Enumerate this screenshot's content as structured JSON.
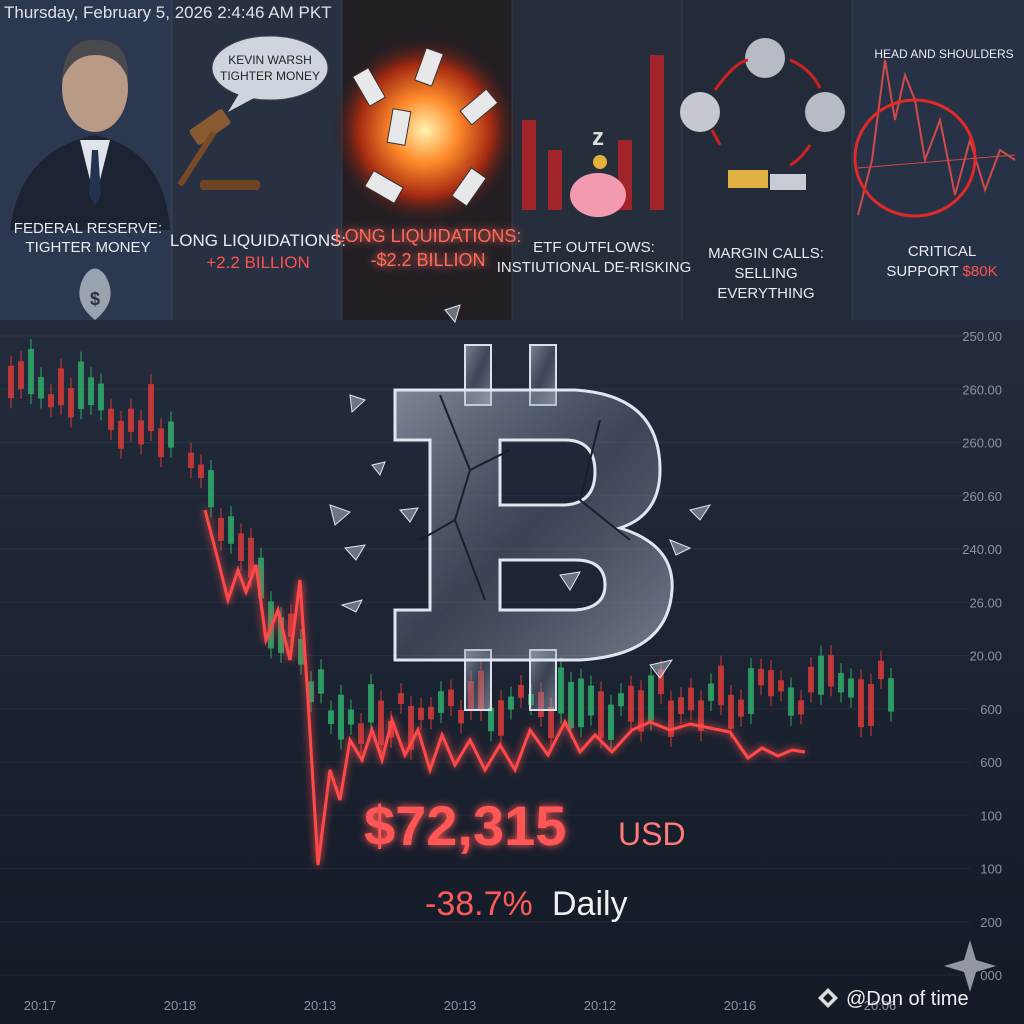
{
  "header": {
    "timestamp": "Thursday, February 5, 2026 2:4:46 AM PKT"
  },
  "panels": [
    {
      "caption": [
        "FEDERAL RESERVE:",
        "TIGHTER MONEY"
      ]
    },
    {
      "bubble": [
        "KEVIN WARSH",
        "TIGHTER MONEY"
      ],
      "caption": [
        "LONG LIQUIDATIONS:"
      ],
      "highlight": "+2.2 BILLION"
    },
    {
      "caption": [
        "LONG LIQUIDATIONS:",
        "-$2.2 BILLION"
      ]
    },
    {
      "caption": [
        "ETF OUTFLOWS:",
        "INSTIUTIONAL DE-RISKING"
      ]
    },
    {
      "caption": [
        "MARGIN CALLS:",
        "SELLING",
        "EVERYTHING"
      ]
    },
    {
      "title": "HEAD AND SHOULDERS",
      "caption": [
        "CRITICAL"
      ],
      "prefix": "SUPPORT",
      "highlight": "$80K"
    }
  ],
  "price": {
    "amount": "$72,315",
    "unit": "USD",
    "change": "-38.7%",
    "period": "Daily"
  },
  "y_axis_labels": [
    "250.00",
    "260.00",
    "260.00",
    "260.60",
    "240.00",
    "26.00",
    "20.00",
    "600",
    "600",
    "100",
    "100",
    "200",
    "000"
  ],
  "x_axis_labels": [
    "20:17",
    "20:18",
    "20:13",
    "20:13",
    "20:12",
    "20:16",
    "20:06"
  ],
  "watermark": "@Don of time"
}
